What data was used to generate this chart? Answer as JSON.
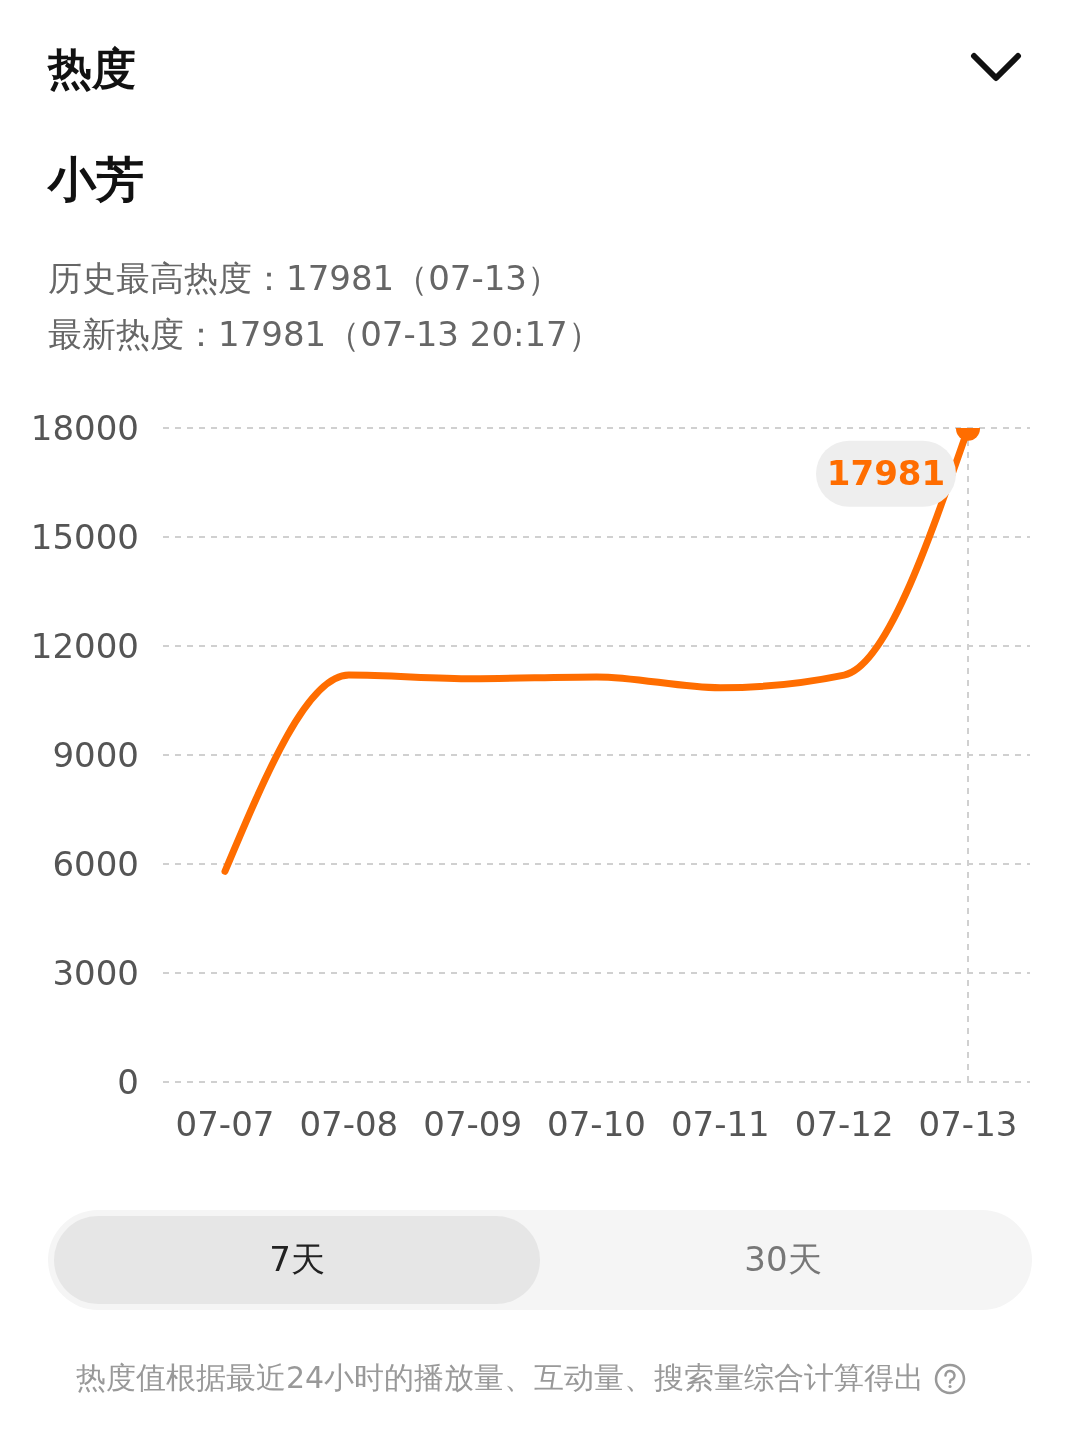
{
  "chart_data": {
    "type": "line",
    "title": "小芳",
    "subtitle": "历史最高热度：17981（07-13）",
    "annotations": [
      "热度",
      "最新热度：17981（07-13 20:17）",
      "7天",
      "30天",
      "热度值根据最近24小时的播放量、互动量、搜索量综合计算得出"
    ],
    "categories": [
      "07-07",
      "07-08",
      "07-09",
      "07-10",
      "07-11",
      "07-12",
      "07-13"
    ],
    "series": [
      {
        "color": "#ff6d00",
        "values": [
          5800,
          11200,
          11100,
          11150,
          10850,
          11200,
          17981
        ],
        "value_labels": [
          null,
          null,
          null,
          null,
          null,
          null,
          "17981"
        ]
      }
    ],
    "ylim": [
      0,
      18000
    ],
    "yticks": [
      0,
      3000,
      6000,
      9000,
      12000,
      15000,
      18000
    ],
    "grid": "y",
    "marker": "none",
    "line_style": "solid",
    "ref_lines": [
      {
        "axis": "x",
        "value": "07-13",
        "color": "#d0d0d0",
        "line_style": "dashed"
      }
    ]
  }
}
